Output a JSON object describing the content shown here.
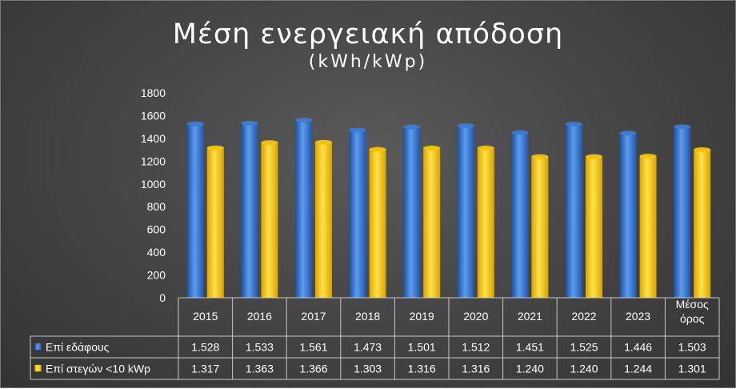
{
  "chart_data": {
    "type": "bar",
    "title": "Μέση ενεργειακή απόδοση",
    "subtitle": "(kWh/kWp)",
    "categories": [
      "2015",
      "2016",
      "2017",
      "2018",
      "2019",
      "2020",
      "2021",
      "2022",
      "2023",
      "Μέσος όρος"
    ],
    "series": [
      {
        "name": "Επί εδάφους",
        "color": "#3d7ad6",
        "values": [
          1528,
          1533,
          1561,
          1473,
          1501,
          1512,
          1451,
          1525,
          1446,
          1503
        ],
        "labels": [
          "1.528",
          "1.533",
          "1.561",
          "1.473",
          "1.501",
          "1.512",
          "1.451",
          "1.525",
          "1.446",
          "1.503"
        ]
      },
      {
        "name": "Επί στεγών <10 kWp",
        "color": "#f5c400",
        "values": [
          1317,
          1363,
          1366,
          1303,
          1316,
          1316,
          1240,
          1240,
          1244,
          1301
        ],
        "labels": [
          "1.317",
          "1.363",
          "1.366",
          "1.303",
          "1.316",
          "1.316",
          "1.240",
          "1.240",
          "1.244",
          "1.301"
        ]
      }
    ],
    "yticks": [
      "0",
      "200",
      "400",
      "600",
      "800",
      "1000",
      "1200",
      "1400",
      "1600",
      "1800"
    ],
    "ylim": [
      0,
      1800
    ],
    "grid": false,
    "legend": "data-table"
  }
}
